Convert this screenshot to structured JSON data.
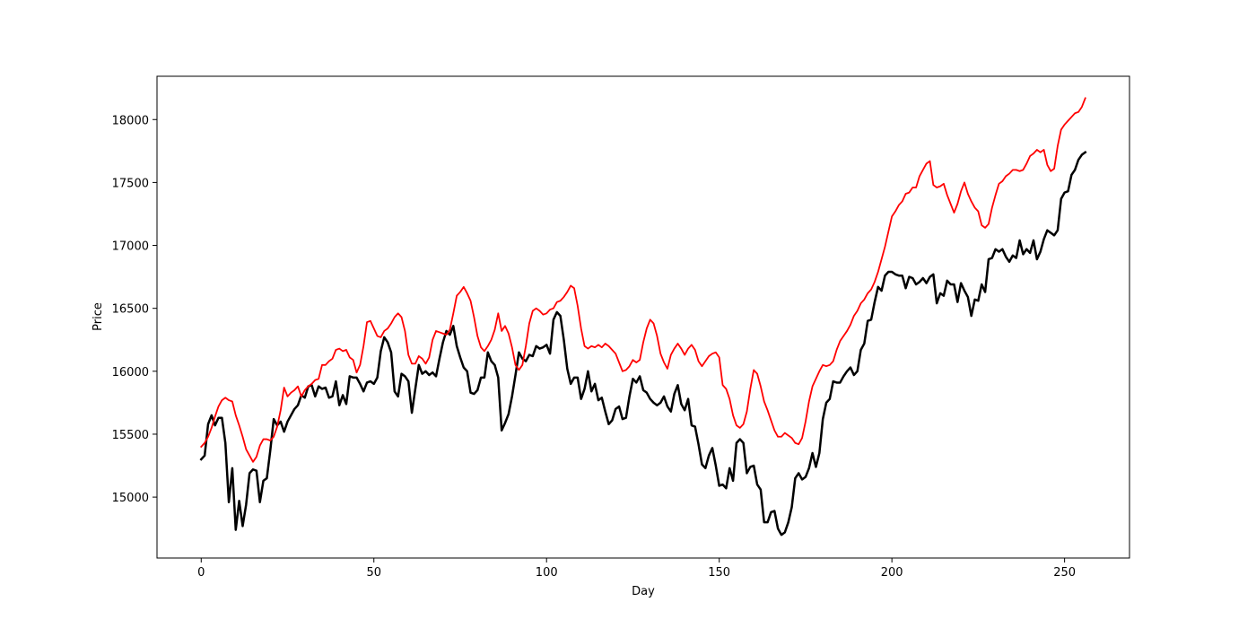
{
  "chart_data": {
    "type": "line",
    "x_label": "Day",
    "y_label": "Price",
    "xlim": [
      -12.8,
      268.8
    ],
    "xticks": [
      0,
      50,
      100,
      150,
      200,
      250
    ],
    "ylim": [
      14516,
      18344
    ],
    "yticks": [
      15000,
      15500,
      16000,
      16500,
      17000,
      17500,
      18000
    ],
    "grid": false,
    "x": [
      0,
      1,
      2,
      3,
      4,
      5,
      6,
      7,
      8,
      9,
      10,
      11,
      12,
      13,
      14,
      15,
      16,
      17,
      18,
      19,
      20,
      21,
      22,
      23,
      24,
      25,
      26,
      27,
      28,
      29,
      30,
      31,
      32,
      33,
      34,
      35,
      36,
      37,
      38,
      39,
      40,
      41,
      42,
      43,
      44,
      45,
      46,
      47,
      48,
      49,
      50,
      51,
      52,
      53,
      54,
      55,
      56,
      57,
      58,
      59,
      60,
      61,
      62,
      63,
      64,
      65,
      66,
      67,
      68,
      69,
      70,
      71,
      72,
      73,
      74,
      75,
      76,
      77,
      78,
      79,
      80,
      81,
      82,
      83,
      84,
      85,
      86,
      87,
      88,
      89,
      90,
      91,
      92,
      93,
      94,
      95,
      96,
      97,
      98,
      99,
      100,
      101,
      102,
      103,
      104,
      105,
      106,
      107,
      108,
      109,
      110,
      111,
      112,
      113,
      114,
      115,
      116,
      117,
      118,
      119,
      120,
      121,
      122,
      123,
      124,
      125,
      126,
      127,
      128,
      129,
      130,
      131,
      132,
      133,
      134,
      135,
      136,
      137,
      138,
      139,
      140,
      141,
      142,
      143,
      144,
      145,
      146,
      147,
      148,
      149,
      150,
      151,
      152,
      153,
      154,
      155,
      156,
      157,
      158,
      159,
      160,
      161,
      162,
      163,
      164,
      165,
      166,
      167,
      168,
      169,
      170,
      171,
      172,
      173,
      174,
      175,
      176,
      177,
      178,
      179,
      180,
      181,
      182,
      183,
      184,
      185,
      186,
      187,
      188,
      189,
      190,
      191,
      192,
      193,
      194,
      195,
      196,
      197,
      198,
      199,
      200,
      201,
      202,
      203,
      204,
      205,
      206,
      207,
      208,
      209,
      210,
      211,
      212,
      213,
      214,
      215,
      216,
      217,
      218,
      219,
      220,
      221,
      222,
      223,
      224,
      225,
      226,
      227,
      228,
      229,
      230,
      231,
      232,
      233,
      234,
      235,
      236,
      237,
      238,
      239,
      240,
      241,
      242,
      243,
      244,
      245,
      246,
      247,
      248,
      249,
      250,
      251,
      252,
      253,
      254,
      255,
      256
    ],
    "series": [
      {
        "color": "#000000",
        "values": [
          15300,
          15330,
          15580,
          15650,
          15570,
          15630,
          15630,
          15430,
          14960,
          15230,
          14740,
          14970,
          14770,
          14940,
          15190,
          15220,
          15210,
          14960,
          15130,
          15150,
          15370,
          15620,
          15570,
          15600,
          15520,
          15600,
          15650,
          15700,
          15730,
          15810,
          15790,
          15880,
          15890,
          15800,
          15880,
          15860,
          15870,
          15790,
          15800,
          15920,
          15730,
          15810,
          15740,
          15960,
          15950,
          15950,
          15900,
          15840,
          15910,
          15920,
          15900,
          15950,
          16160,
          16270,
          16230,
          16150,
          15840,
          15800,
          15980,
          15960,
          15920,
          15670,
          15860,
          16050,
          15980,
          16000,
          15970,
          15990,
          15960,
          16100,
          16230,
          16320,
          16290,
          16360,
          16200,
          16110,
          16030,
          16000,
          15830,
          15820,
          15850,
          15950,
          15950,
          16150,
          16080,
          16050,
          15950,
          15530,
          15590,
          15660,
          15800,
          15970,
          16150,
          16100,
          16080,
          16130,
          16120,
          16200,
          16180,
          16190,
          16210,
          16140,
          16410,
          16470,
          16440,
          16250,
          16020,
          15900,
          15950,
          15950,
          15780,
          15860,
          16000,
          15840,
          15900,
          15770,
          15790,
          15680,
          15580,
          15610,
          15700,
          15720,
          15620,
          15630,
          15800,
          15940,
          15910,
          15960,
          15850,
          15830,
          15780,
          15750,
          15730,
          15750,
          15800,
          15720,
          15680,
          15820,
          15890,
          15740,
          15690,
          15780,
          15570,
          15560,
          15420,
          15260,
          15230,
          15330,
          15390,
          15250,
          15090,
          15100,
          15070,
          15230,
          15130,
          15430,
          15460,
          15430,
          15190,
          15240,
          15250,
          15100,
          15060,
          14800,
          14800,
          14880,
          14890,
          14750,
          14700,
          14720,
          14800,
          14920,
          15150,
          15190,
          15140,
          15160,
          15230,
          15350,
          15240,
          15350,
          15620,
          15750,
          15780,
          15920,
          15910,
          15910,
          15960,
          16000,
          16030,
          15970,
          16000,
          16170,
          16220,
          16400,
          16410,
          16550,
          16670,
          16640,
          16760,
          16790,
          16790,
          16770,
          16760,
          16760,
          16660,
          16750,
          16740,
          16690,
          16710,
          16740,
          16700,
          16750,
          16770,
          16540,
          16620,
          16600,
          16720,
          16690,
          16690,
          16550,
          16700,
          16640,
          16590,
          16440,
          16570,
          16560,
          16690,
          16630,
          16890,
          16900,
          16970,
          16950,
          16970,
          16910,
          16870,
          16920,
          16900,
          17040,
          16930,
          16970,
          16940,
          17040,
          16890,
          16950,
          17050,
          17120,
          17100,
          17080,
          17120,
          17370,
          17420,
          17430,
          17560,
          17600,
          17680,
          17720,
          17740
        ]
      },
      {
        "color": "#ff0000",
        "values": [
          15400,
          15430,
          15480,
          15550,
          15640,
          15720,
          15770,
          15790,
          15770,
          15760,
          15650,
          15570,
          15480,
          15380,
          15330,
          15280,
          15320,
          15410,
          15460,
          15460,
          15450,
          15480,
          15560,
          15690,
          15870,
          15800,
          15830,
          15850,
          15880,
          15800,
          15850,
          15880,
          15900,
          15930,
          15940,
          16050,
          16050,
          16080,
          16100,
          16170,
          16180,
          16160,
          16170,
          16110,
          16090,
          15990,
          16050,
          16200,
          16390,
          16400,
          16340,
          16280,
          16270,
          16320,
          16340,
          16380,
          16430,
          16460,
          16430,
          16320,
          16130,
          16060,
          16060,
          16120,
          16100,
          16060,
          16110,
          16250,
          16320,
          16310,
          16300,
          16290,
          16330,
          16460,
          16600,
          16630,
          16670,
          16620,
          16560,
          16430,
          16280,
          16190,
          16160,
          16200,
          16250,
          16330,
          16460,
          16320,
          16360,
          16300,
          16190,
          16050,
          16010,
          16050,
          16200,
          16380,
          16480,
          16500,
          16480,
          16450,
          16460,
          16490,
          16500,
          16550,
          16560,
          16590,
          16630,
          16680,
          16660,
          16520,
          16340,
          16200,
          16180,
          16200,
          16190,
          16210,
          16190,
          16220,
          16200,
          16170,
          16140,
          16070,
          16000,
          16010,
          16040,
          16090,
          16070,
          16090,
          16230,
          16340,
          16410,
          16380,
          16280,
          16140,
          16070,
          16020,
          16130,
          16180,
          16220,
          16180,
          16130,
          16180,
          16210,
          16170,
          16080,
          16040,
          16080,
          16120,
          16140,
          16150,
          16110,
          15890,
          15860,
          15780,
          15650,
          15570,
          15550,
          15580,
          15680,
          15860,
          16010,
          15980,
          15880,
          15760,
          15690,
          15610,
          15530,
          15480,
          15480,
          15510,
          15490,
          15470,
          15430,
          15420,
          15470,
          15600,
          15760,
          15880,
          15940,
          16000,
          16050,
          16040,
          16050,
          16080,
          16170,
          16240,
          16280,
          16320,
          16370,
          16440,
          16480,
          16540,
          16570,
          16620,
          16650,
          16710,
          16790,
          16890,
          16990,
          17110,
          17230,
          17270,
          17320,
          17350,
          17410,
          17420,
          17460,
          17460,
          17550,
          17600,
          17650,
          17670,
          17480,
          17460,
          17470,
          17490,
          17400,
          17330,
          17260,
          17330,
          17430,
          17500,
          17410,
          17350,
          17300,
          17270,
          17160,
          17140,
          17170,
          17300,
          17400,
          17490,
          17510,
          17550,
          17570,
          17600,
          17600,
          17590,
          17600,
          17650,
          17710,
          17730,
          17760,
          17740,
          17760,
          17640,
          17590,
          17610,
          17790,
          17920,
          17960,
          17990,
          18020,
          18050,
          18060,
          18100,
          18170
        ]
      }
    ]
  }
}
